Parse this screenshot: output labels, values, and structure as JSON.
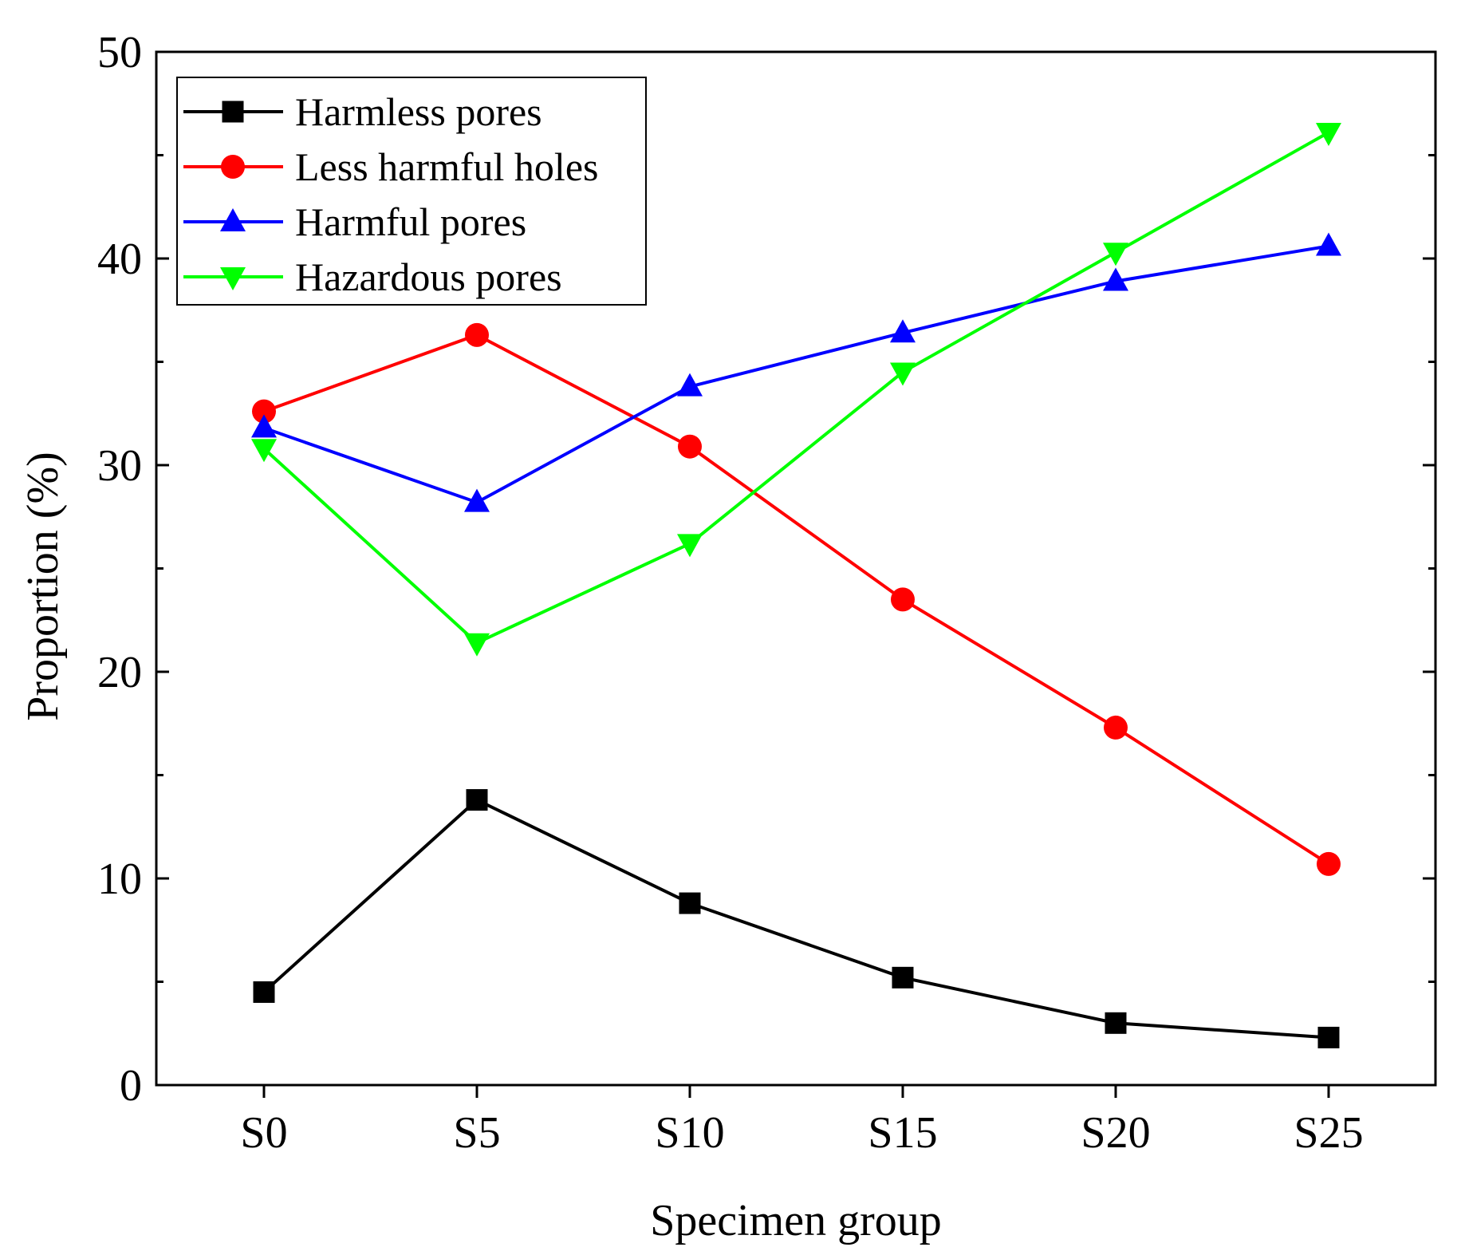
{
  "chart_data": {
    "type": "line",
    "title": "",
    "xlabel": "Specimen group",
    "ylabel": "Proportion (%)",
    "categories": [
      "S0",
      "S5",
      "S10",
      "S15",
      "S20",
      "S25"
    ],
    "ylim": [
      0,
      50
    ],
    "yticks": [
      0,
      10,
      20,
      30,
      40,
      50
    ],
    "yticks_minor": [
      5,
      15,
      25,
      35,
      45
    ],
    "grid": false,
    "legend_position": "top-left",
    "series": [
      {
        "name": "Harmless pores",
        "color": "#000000",
        "marker": "square",
        "values": [
          4.5,
          13.8,
          8.8,
          5.2,
          3.0,
          2.3
        ]
      },
      {
        "name": "Less harmful holes",
        "color": "#ff0000",
        "marker": "circle",
        "values": [
          32.6,
          36.3,
          30.9,
          23.5,
          17.3,
          10.7
        ]
      },
      {
        "name": "Harmful pores",
        "color": "#0000ff",
        "marker": "triangle-up",
        "values": [
          31.8,
          28.2,
          33.8,
          36.4,
          38.9,
          40.6
        ]
      },
      {
        "name": "Hazardous pores",
        "color": "#00ff00",
        "marker": "triangle-down",
        "values": [
          30.8,
          21.4,
          26.2,
          34.5,
          40.3,
          46.1
        ]
      }
    ]
  }
}
